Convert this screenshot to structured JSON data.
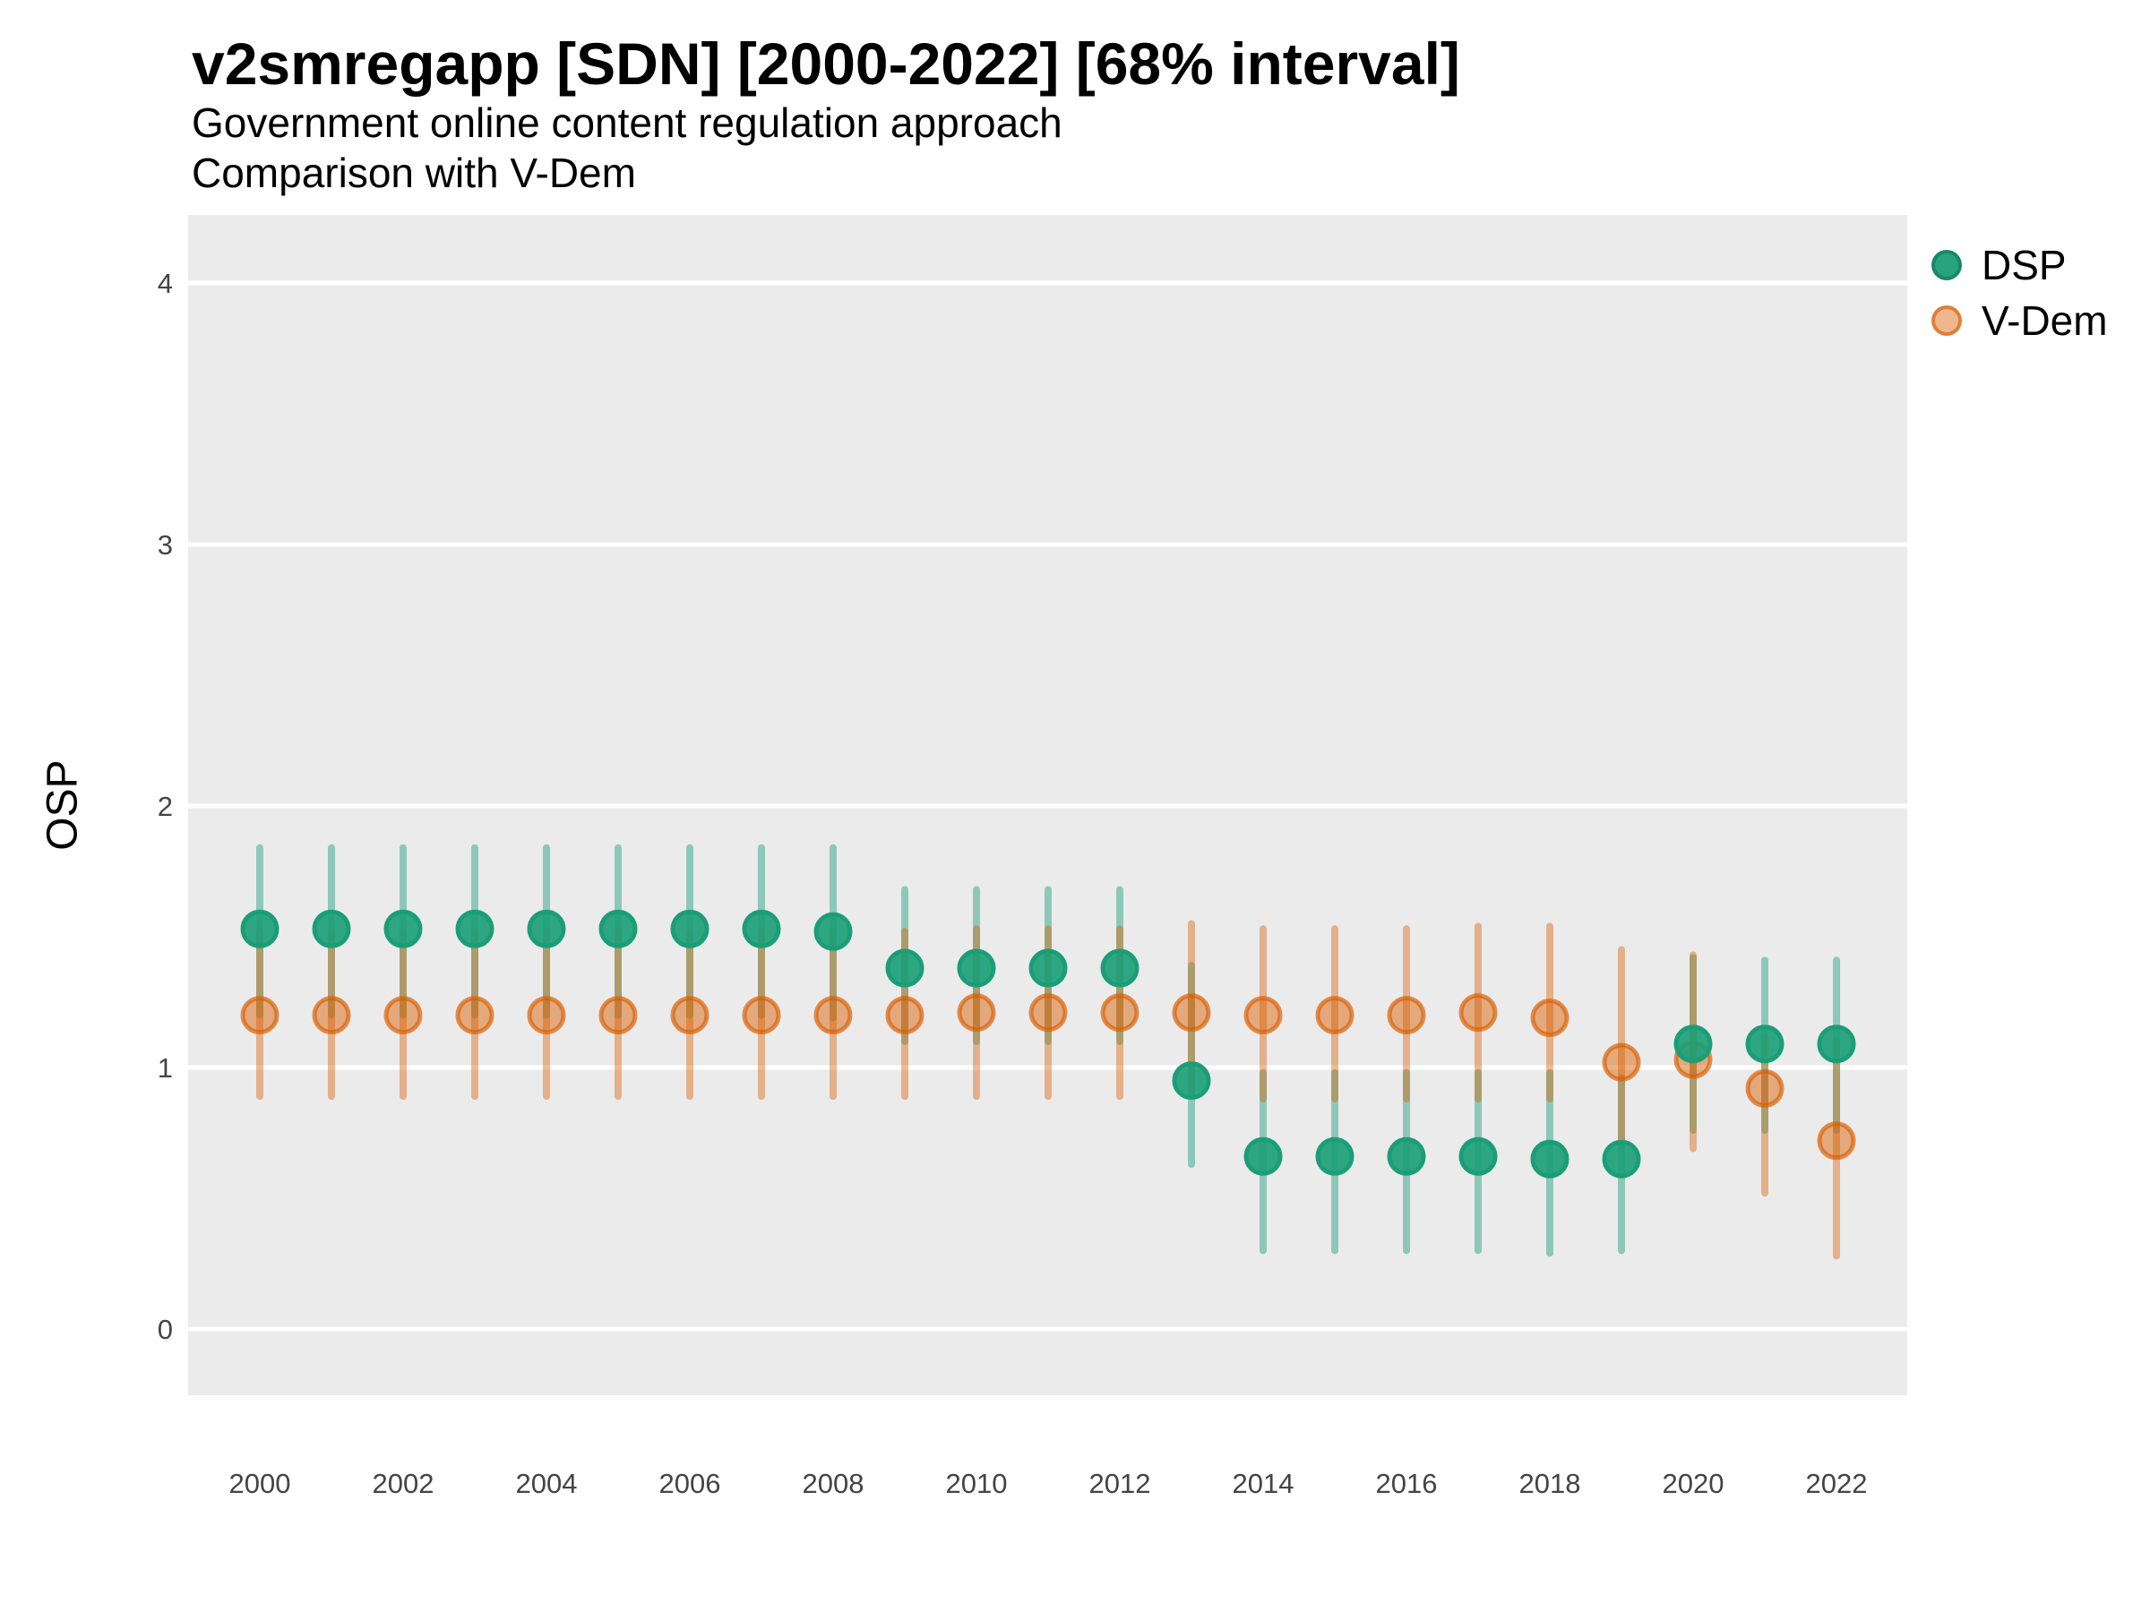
{
  "header": {
    "title": "v2smregapp [SDN] [2000-2022] [68% interval]",
    "subtitle1": "Government online content regulation approach",
    "subtitle2": "Comparison with V-Dem"
  },
  "theme": {
    "panel_bg": "#EBEBEB",
    "grid_color": "#FFFFFF",
    "axis_text_color": "#444444",
    "dsp_color": "#1B9E77",
    "vdem_color": "#D95F02"
  },
  "chart_data": {
    "type": "pointrange",
    "title": "v2smregapp [SDN] [2000-2022] [68% interval]",
    "subtitle": [
      "Government online content regulation approach",
      "Comparison with V-Dem"
    ],
    "xlabel": "",
    "ylabel": "OSP",
    "interval": "68%",
    "legend_position": "right",
    "grid": "major horizontal white lines on gray panel",
    "ylim": [
      -0.26,
      4.26
    ],
    "y_ticks": [
      0,
      1,
      2,
      3,
      4
    ],
    "x_tick_labels": [
      "2000",
      "2002",
      "2004",
      "2006",
      "2008",
      "2010",
      "2012",
      "2014",
      "2016",
      "2018",
      "2020",
      "2022"
    ],
    "x": [
      2000,
      2001,
      2002,
      2003,
      2004,
      2005,
      2006,
      2007,
      2008,
      2009,
      2010,
      2011,
      2012,
      2013,
      2014,
      2015,
      2016,
      2017,
      2018,
      2019,
      2020,
      2021,
      2022
    ],
    "series": [
      {
        "name": "DSP",
        "color": "#1B9E77",
        "est": [
          1.53,
          1.53,
          1.53,
          1.53,
          1.53,
          1.53,
          1.53,
          1.53,
          1.52,
          1.38,
          1.38,
          1.38,
          1.38,
          0.95,
          0.66,
          0.66,
          0.66,
          0.66,
          0.65,
          0.65,
          1.09,
          1.09,
          1.09
        ],
        "lo": [
          1.2,
          1.2,
          1.2,
          1.2,
          1.2,
          1.2,
          1.2,
          1.2,
          1.19,
          1.1,
          1.1,
          1.1,
          1.1,
          0.63,
          0.3,
          0.3,
          0.3,
          0.3,
          0.29,
          0.3,
          0.76,
          0.76,
          0.76
        ],
        "hi": [
          1.84,
          1.84,
          1.84,
          1.84,
          1.84,
          1.84,
          1.84,
          1.84,
          1.84,
          1.68,
          1.68,
          1.68,
          1.68,
          1.39,
          0.98,
          0.98,
          0.98,
          0.98,
          0.98,
          0.96,
          1.42,
          1.41,
          1.41
        ]
      },
      {
        "name": "V-Dem",
        "color": "#D95F02",
        "est": [
          1.2,
          1.2,
          1.2,
          1.2,
          1.2,
          1.2,
          1.2,
          1.2,
          1.2,
          1.2,
          1.21,
          1.21,
          1.21,
          1.21,
          1.2,
          1.2,
          1.2,
          1.21,
          1.19,
          1.02,
          1.03,
          0.92,
          0.72
        ],
        "lo": [
          0.89,
          0.89,
          0.89,
          0.89,
          0.89,
          0.89,
          0.89,
          0.89,
          0.89,
          0.89,
          0.89,
          0.89,
          0.89,
          0.89,
          0.88,
          0.88,
          0.88,
          0.88,
          0.88,
          0.7,
          0.69,
          0.52,
          0.28
        ],
        "hi": [
          1.52,
          1.52,
          1.52,
          1.52,
          1.52,
          1.52,
          1.52,
          1.52,
          1.52,
          1.52,
          1.53,
          1.53,
          1.53,
          1.55,
          1.53,
          1.53,
          1.53,
          1.54,
          1.54,
          1.45,
          1.43,
          1.12,
          1.1
        ]
      }
    ]
  }
}
